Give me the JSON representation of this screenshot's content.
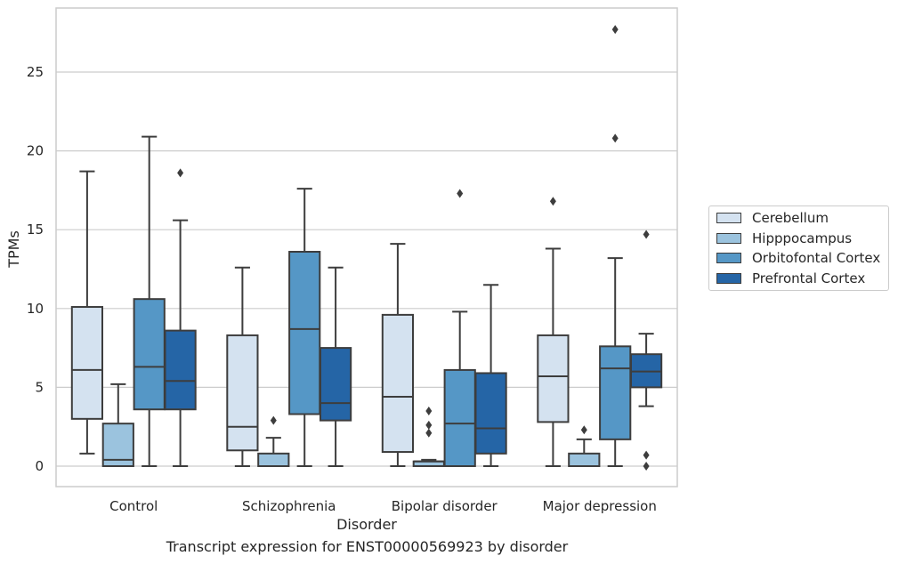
{
  "chart_data": {
    "type": "box",
    "caption": "Transcript expression for ENST00000569923 by disorder",
    "xlabel": "Disorder",
    "ylabel": "TPMs",
    "ylim": [
      -1.3,
      29.0
    ],
    "yticks": [
      0,
      5,
      10,
      15,
      20,
      25
    ],
    "grid": "horizontal",
    "legend_position": "right",
    "categories": [
      "Control",
      "Schizophrenia",
      "Bipolar disorder",
      "Major depression"
    ],
    "series": [
      {
        "name": "Cerebellum",
        "color": "#d4e2f0",
        "boxes": [
          {
            "whisker_low": 0.8,
            "q1": 3.0,
            "median": 6.1,
            "q3": 10.1,
            "whisker_high": 18.7,
            "outliers": []
          },
          {
            "whisker_low": 0.0,
            "q1": 1.0,
            "median": 2.5,
            "q3": 8.3,
            "whisker_high": 12.6,
            "outliers": []
          },
          {
            "whisker_low": 0.0,
            "q1": 0.9,
            "median": 4.4,
            "q3": 9.6,
            "whisker_high": 14.1,
            "outliers": []
          },
          {
            "whisker_low": 0.0,
            "q1": 2.8,
            "median": 5.7,
            "q3": 8.3,
            "whisker_high": 13.8,
            "outliers": [
              16.8
            ]
          }
        ]
      },
      {
        "name": "Hipppocampus",
        "color": "#9bc3de",
        "boxes": [
          {
            "whisker_low": 0.0,
            "q1": 0.0,
            "median": 0.4,
            "q3": 2.7,
            "whisker_high": 5.2,
            "outliers": []
          },
          {
            "whisker_low": 0.0,
            "q1": 0.0,
            "median": 0.0,
            "q3": 0.8,
            "whisker_high": 1.8,
            "outliers": [
              2.9
            ]
          },
          {
            "whisker_low": 0.0,
            "q1": 0.0,
            "median": 0.3,
            "q3": 0.3,
            "whisker_high": 0.4,
            "outliers": [
              2.1,
              2.6,
              3.5
            ]
          },
          {
            "whisker_low": 0.0,
            "q1": 0.0,
            "median": 0.0,
            "q3": 0.8,
            "whisker_high": 1.7,
            "outliers": [
              2.3
            ]
          }
        ]
      },
      {
        "name": "Orbitofontal Cortex",
        "color": "#5597c6",
        "boxes": [
          {
            "whisker_low": 0.0,
            "q1": 3.6,
            "median": 6.3,
            "q3": 10.6,
            "whisker_high": 20.9,
            "outliers": []
          },
          {
            "whisker_low": 0.0,
            "q1": 3.3,
            "median": 8.7,
            "q3": 13.6,
            "whisker_high": 17.6,
            "outliers": []
          },
          {
            "whisker_low": 0.0,
            "q1": 0.0,
            "median": 2.7,
            "q3": 6.1,
            "whisker_high": 9.8,
            "outliers": [
              17.3
            ]
          },
          {
            "whisker_low": 0.0,
            "q1": 1.7,
            "median": 6.2,
            "q3": 7.6,
            "whisker_high": 13.2,
            "outliers": [
              20.8,
              27.7
            ]
          }
        ]
      },
      {
        "name": "Prefrontal Cortex",
        "color": "#2565a6",
        "boxes": [
          {
            "whisker_low": 0.0,
            "q1": 3.6,
            "median": 5.4,
            "q3": 8.6,
            "whisker_high": 15.6,
            "outliers": [
              18.6
            ]
          },
          {
            "whisker_low": 0.0,
            "q1": 2.9,
            "median": 4.0,
            "q3": 7.5,
            "whisker_high": 12.6,
            "outliers": []
          },
          {
            "whisker_low": 0.0,
            "q1": 0.8,
            "median": 2.4,
            "q3": 5.9,
            "whisker_high": 11.5,
            "outliers": []
          },
          {
            "whisker_low": 3.8,
            "q1": 5.0,
            "median": 6.0,
            "q3": 7.1,
            "whisker_high": 8.4,
            "outliers": [
              0.0,
              0.7,
              14.7
            ]
          }
        ]
      }
    ]
  }
}
